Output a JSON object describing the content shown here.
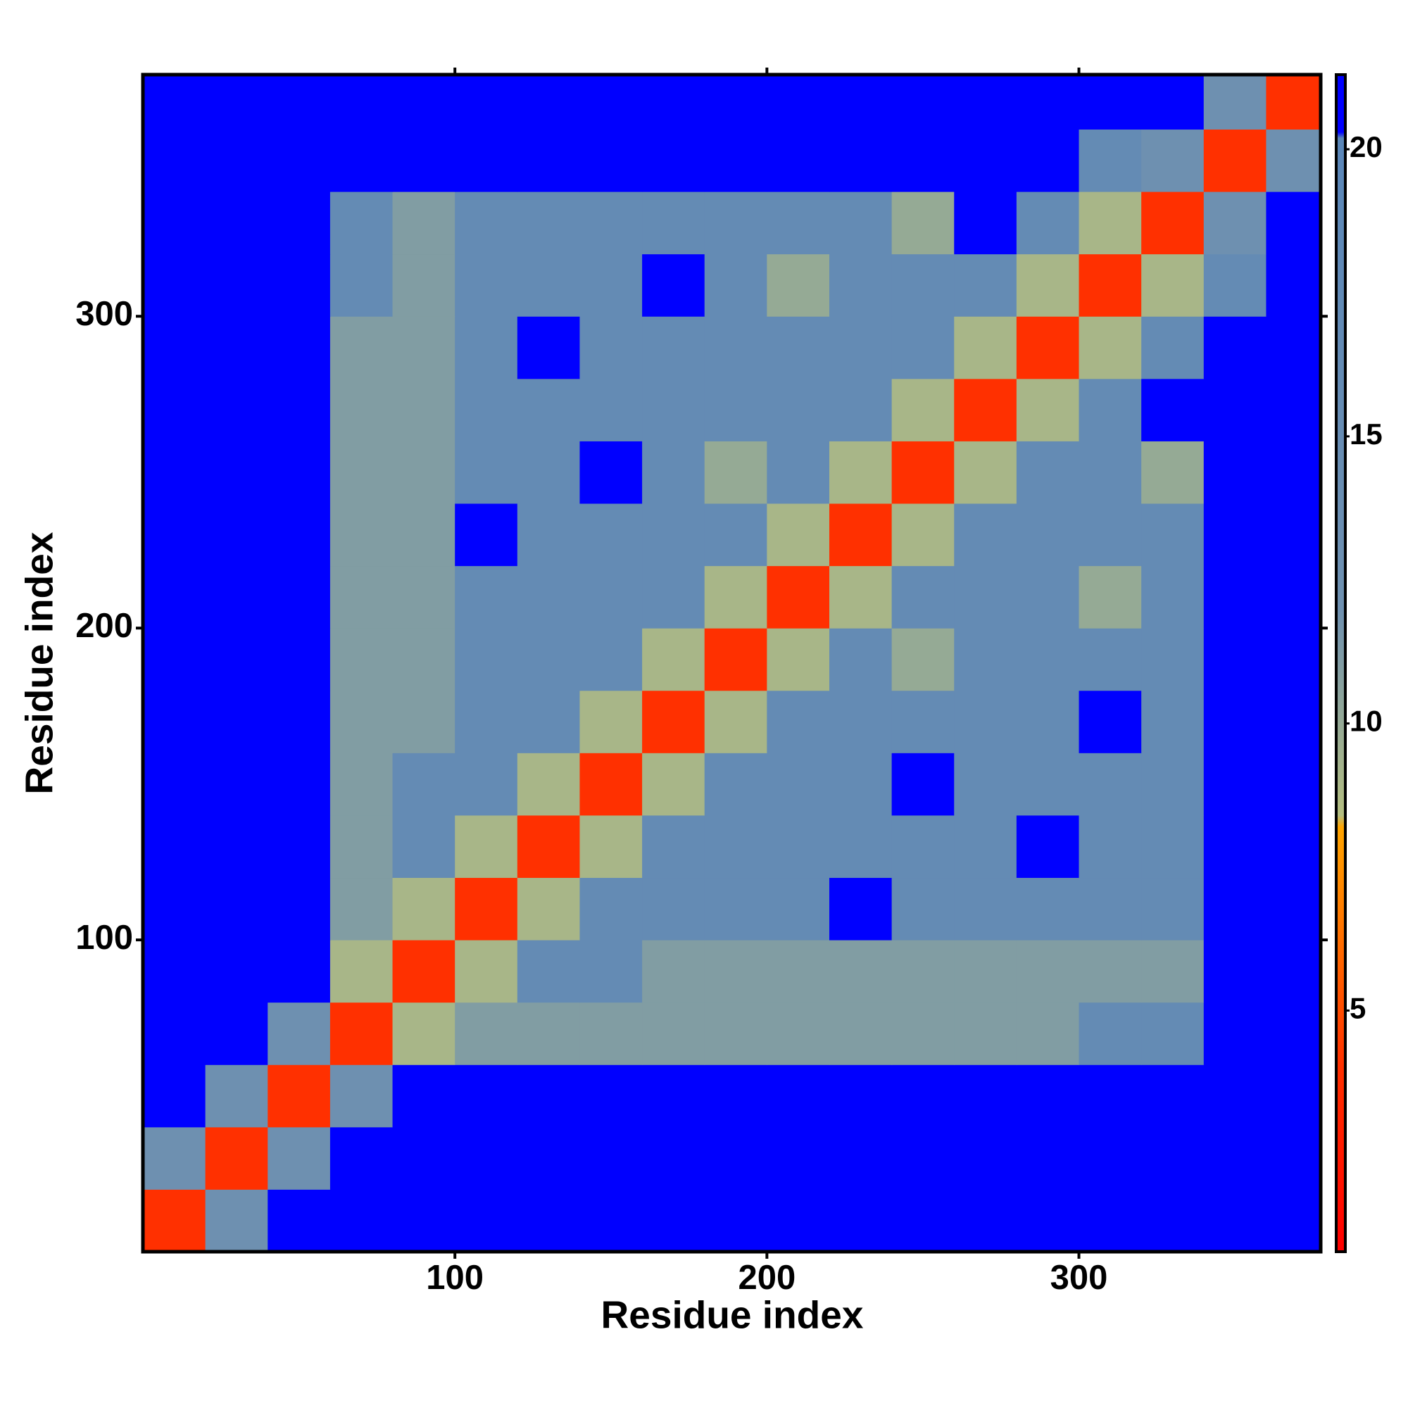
{
  "chart_data": {
    "type": "heatmap",
    "x_label": "Residue index",
    "y_label": "Residue index",
    "bins": [
      0,
      20,
      40,
      60,
      80,
      100,
      120,
      140,
      160,
      180,
      200,
      220,
      240,
      260,
      280,
      300,
      320,
      340,
      360,
      377.5
    ],
    "values": [
      [
        4,
        12,
        21,
        21,
        21,
        21,
        21,
        21,
        21,
        21,
        21,
        21,
        21,
        21,
        21,
        21,
        21,
        21,
        21
      ],
      [
        12,
        4,
        12,
        21,
        21,
        21,
        21,
        21,
        21,
        21,
        21,
        21,
        21,
        21,
        21,
        21,
        21,
        21,
        21
      ],
      [
        21,
        12,
        4,
        12,
        21,
        21,
        21,
        21,
        21,
        21,
        21,
        21,
        21,
        21,
        21,
        21,
        21,
        21,
        21
      ],
      [
        21,
        21,
        12,
        4,
        9,
        11,
        11,
        11,
        11,
        11,
        11,
        11,
        11,
        11,
        11,
        16,
        16,
        21,
        21
      ],
      [
        21,
        21,
        21,
        9,
        4,
        9,
        16,
        16,
        11,
        11,
        11,
        11,
        11,
        11,
        11,
        11,
        11,
        21,
        21
      ],
      [
        21,
        21,
        21,
        11,
        9,
        4,
        9,
        16,
        16,
        16,
        16,
        21,
        16,
        16,
        16,
        16,
        16,
        21,
        21
      ],
      [
        21,
        21,
        21,
        11,
        16,
        9,
        4,
        9,
        16,
        16,
        16,
        16,
        16,
        16,
        21,
        16,
        16,
        21,
        21
      ],
      [
        21,
        21,
        21,
        11,
        16,
        16,
        9,
        4,
        9,
        16,
        16,
        16,
        21,
        16,
        16,
        16,
        16,
        21,
        21
      ],
      [
        21,
        21,
        21,
        11,
        11,
        16,
        16,
        9,
        4,
        9,
        16,
        16,
        16,
        16,
        16,
        21,
        16,
        21,
        21
      ],
      [
        21,
        21,
        21,
        11,
        11,
        16,
        16,
        16,
        9,
        4,
        9,
        16,
        10,
        16,
        16,
        16,
        16,
        21,
        21
      ],
      [
        21,
        21,
        21,
        11,
        11,
        16,
        16,
        16,
        16,
        9,
        4,
        9,
        16,
        16,
        16,
        10,
        16,
        21,
        21
      ],
      [
        21,
        21,
        21,
        11,
        11,
        21,
        16,
        16,
        16,
        16,
        9,
        4,
        9,
        16,
        16,
        16,
        16,
        21,
        21
      ],
      [
        21,
        21,
        21,
        11,
        11,
        16,
        16,
        21,
        16,
        10,
        16,
        9,
        4,
        9,
        16,
        16,
        10,
        21,
        21
      ],
      [
        21,
        21,
        21,
        11,
        11,
        16,
        16,
        16,
        16,
        16,
        16,
        16,
        9,
        4,
        9,
        16,
        21,
        21,
        21
      ],
      [
        21,
        21,
        21,
        11,
        11,
        16,
        21,
        16,
        16,
        16,
        16,
        16,
        16,
        9,
        4,
        9,
        16,
        21,
        21
      ],
      [
        21,
        21,
        21,
        16,
        11,
        16,
        16,
        16,
        21,
        16,
        10,
        16,
        16,
        16,
        9,
        4,
        9,
        16,
        21
      ],
      [
        21,
        21,
        21,
        16,
        11,
        16,
        16,
        16,
        16,
        16,
        16,
        16,
        10,
        21,
        16,
        9,
        4,
        12,
        21
      ],
      [
        21,
        21,
        21,
        21,
        21,
        21,
        21,
        21,
        21,
        21,
        21,
        21,
        21,
        21,
        21,
        16,
        12,
        4,
        12
      ],
      [
        21,
        21,
        21,
        21,
        21,
        21,
        21,
        21,
        21,
        21,
        21,
        21,
        21,
        21,
        21,
        21,
        21,
        12,
        4
      ]
    ],
    "xlim": [
      0,
      377.5
    ],
    "ylim": [
      0,
      377.5
    ],
    "xticks": [
      100,
      200,
      300
    ],
    "yticks": [
      100,
      200,
      300
    ],
    "colorbar": {
      "lim": [
        0.8,
        21.3
      ],
      "ticks": [
        5,
        10,
        15,
        20
      ]
    },
    "colorscale": [
      {
        "value": 0.8,
        "color": "#ff0000"
      },
      {
        "value": 4,
        "color": "#ff3000"
      },
      {
        "value": 8.2,
        "color": "#ffa500"
      },
      {
        "value": 8.4,
        "color": "#b4be80"
      },
      {
        "value": 12,
        "color": "#6e90b0"
      },
      {
        "value": 20.2,
        "color": "#5a86b8"
      },
      {
        "value": 20.3,
        "color": "#0000ff"
      },
      {
        "value": 21.3,
        "color": "#0000ff"
      }
    ]
  }
}
